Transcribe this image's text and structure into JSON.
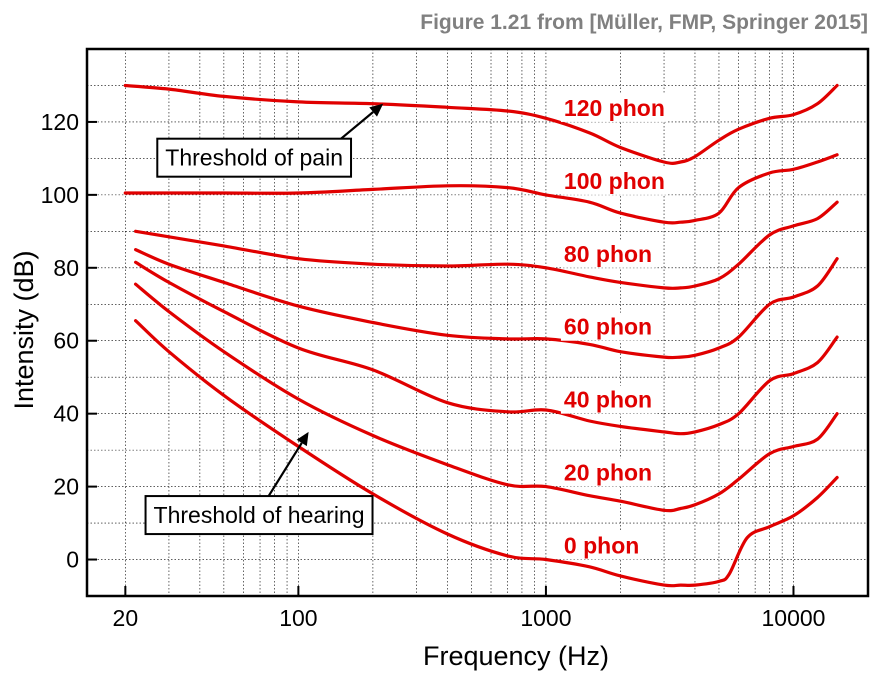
{
  "figure_credit": "Figure 1.21 from [Müller, FMP, Springer 2015]",
  "chart_data": {
    "type": "line",
    "xlabel": "Frequency (Hz)",
    "ylabel": "Intensity (dB)",
    "x_scale": "log",
    "xlim": [
      14,
      20000
    ],
    "ylim": [
      -10,
      140
    ],
    "x_ticks": [
      20,
      100,
      1000,
      10000
    ],
    "y_ticks": [
      0,
      20,
      40,
      60,
      80,
      100,
      120
    ],
    "grid": true,
    "series_color": "#e00000",
    "series": [
      {
        "name": "120 phon",
        "x": [
          20,
          30,
          50,
          100,
          200,
          400,
          700,
          1000,
          1500,
          2000,
          3000,
          3500,
          4000,
          5000,
          6000,
          8000,
          10000,
          12500,
          15000
        ],
        "y": [
          130,
          129,
          127,
          125.5,
          125,
          124,
          123,
          121,
          117,
          113,
          109,
          109,
          110.5,
          115,
          118,
          121,
          122,
          125,
          130
        ]
      },
      {
        "name": "100 phon",
        "x": [
          20,
          30,
          50,
          100,
          200,
          400,
          700,
          1000,
          1500,
          2000,
          3000,
          3500,
          4000,
          5000,
          6000,
          8000,
          10000,
          12500,
          15000
        ],
        "y": [
          100.5,
          100.5,
          100.5,
          100.5,
          101.5,
          102.5,
          102,
          100,
          98,
          95,
          92.5,
          92.5,
          93,
          95,
          102,
          106,
          107,
          109,
          111
        ]
      },
      {
        "name": "80 phon",
        "x": [
          22,
          30,
          50,
          100,
          200,
          400,
          700,
          1000,
          1500,
          2000,
          3000,
          3500,
          4000,
          5000,
          6000,
          8000,
          10000,
          12500,
          15000
        ],
        "y": [
          90,
          88.5,
          86,
          82.5,
          81,
          80.5,
          81,
          80,
          77.5,
          76,
          74.5,
          74.5,
          75,
          77,
          81,
          89,
          91.5,
          93.5,
          98
        ]
      },
      {
        "name": "60 phon",
        "x": [
          22,
          30,
          50,
          100,
          200,
          400,
          700,
          1000,
          1500,
          2000,
          3000,
          3500,
          4000,
          5000,
          6000,
          8000,
          10000,
          12500,
          15000
        ],
        "y": [
          85,
          81,
          76,
          69.5,
          65,
          61.5,
          60.5,
          60.5,
          59,
          57,
          55.5,
          55.5,
          56,
          58,
          61,
          70,
          72,
          75,
          82.5
        ]
      },
      {
        "name": "40 phon",
        "x": [
          22,
          30,
          50,
          100,
          200,
          400,
          700,
          1000,
          1500,
          2000,
          3000,
          3500,
          4000,
          5000,
          6000,
          8000,
          10000,
          12500,
          15000
        ],
        "y": [
          81.5,
          76,
          68,
          58,
          52,
          43,
          40.5,
          41,
          38,
          36.5,
          35,
          34.5,
          35,
          37,
          40,
          49,
          51,
          54,
          61
        ]
      },
      {
        "name": "20 phon",
        "x": [
          22,
          30,
          50,
          100,
          200,
          400,
          700,
          1000,
          1500,
          2000,
          3000,
          3500,
          4000,
          5000,
          6000,
          8000,
          10000,
          12500,
          15000
        ],
        "y": [
          75.5,
          68,
          57,
          44,
          34,
          26,
          20.5,
          20,
          17.5,
          16,
          13.5,
          14,
          15,
          18,
          22,
          29,
          31,
          33,
          40
        ]
      },
      {
        "name": "0 phon",
        "x": [
          22,
          30,
          50,
          100,
          200,
          400,
          700,
          1000,
          1500,
          2000,
          3000,
          3500,
          4000,
          5000,
          5500,
          6500,
          8000,
          10000,
          12500,
          15000
        ],
        "y": [
          65.5,
          57,
          45,
          31,
          18,
          7,
          1,
          0,
          -2,
          -4.5,
          -7,
          -7,
          -7,
          -6,
          -4,
          6,
          9,
          12,
          17,
          22.5
        ]
      }
    ],
    "curve_labels": [
      {
        "text": "120 phon",
        "x": 1000,
        "y": 120
      },
      {
        "text": "100 phon",
        "x": 1000,
        "y": 100
      },
      {
        "text": "80 phon",
        "x": 1000,
        "y": 80
      },
      {
        "text": "60 phon",
        "x": 1000,
        "y": 60
      },
      {
        "text": "40 phon",
        "x": 1000,
        "y": 40
      },
      {
        "text": "20 phon",
        "x": 1000,
        "y": 20
      },
      {
        "text": "0 phon",
        "x": 1000,
        "y": 0
      }
    ],
    "annotations": [
      {
        "text": "Threshold of pain",
        "box_x": 29,
        "box_y": 108,
        "arrow_to_x": 220,
        "arrow_to_y": 125
      },
      {
        "text": "Threshold of hearing",
        "box_x": 26,
        "box_y": 10,
        "arrow_to_x": 110,
        "arrow_to_y": 35
      }
    ]
  }
}
